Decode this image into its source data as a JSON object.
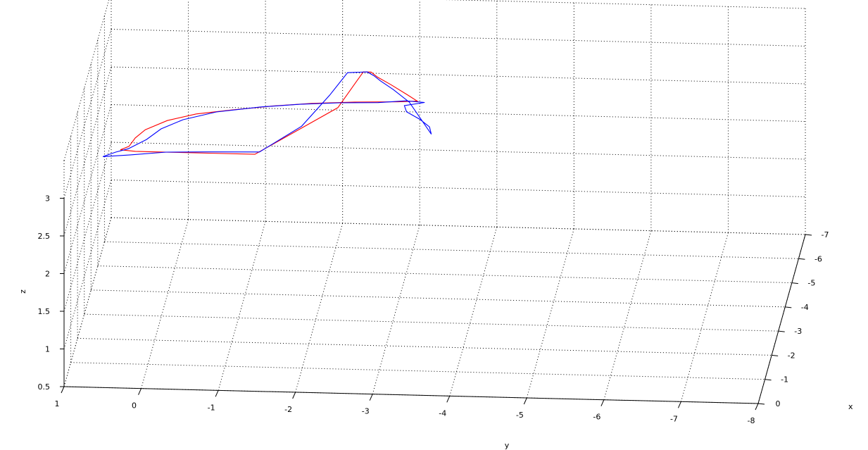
{
  "chart_data": {
    "type": "line",
    "title": "",
    "xlabel": "x",
    "ylabel": "y",
    "zlabel": "z",
    "grid": true,
    "xlim": [
      -7,
      0
    ],
    "ylim": [
      -8,
      1
    ],
    "zlim": [
      0.5,
      3
    ],
    "x_ticks": [
      0,
      -1,
      -2,
      -3,
      -4,
      -5,
      -6,
      -7
    ],
    "x_tick_labels": [
      "0",
      "-1",
      "-2",
      "-3",
      "-4",
      "-5",
      "-6",
      "-7"
    ],
    "y_ticks": [
      1,
      0,
      -1,
      -2,
      -3,
      -4,
      -5,
      -6,
      -7,
      -8
    ],
    "y_tick_labels": [
      "1",
      "0",
      "-1",
      "-2",
      "-3",
      "-4",
      "-5",
      "-6",
      "-7",
      "-8"
    ],
    "z_ticks": [
      0.5,
      1,
      1.5,
      2,
      2.5,
      3
    ],
    "z_tick_labels": [
      "0.5",
      "1",
      "1.5",
      "2",
      "2.5",
      "3"
    ],
    "series": [
      {
        "color": "#ff0000",
        "points": [
          [
            -2.05,
            0.45,
            3.0
          ],
          [
            -2.2,
            0.35,
            3.0
          ],
          [
            -2.55,
            0.3,
            3.0
          ],
          [
            -2.9,
            0.2,
            3.0
          ],
          [
            -3.3,
            -0.05,
            3.0
          ],
          [
            -3.6,
            -0.4,
            3.0
          ],
          [
            -3.8,
            -0.85,
            3.0
          ],
          [
            -4.0,
            -1.35,
            3.0
          ],
          [
            -4.15,
            -1.85,
            3.0
          ],
          [
            -4.25,
            -2.4,
            3.0
          ],
          [
            -4.3,
            -2.95,
            3.0
          ],
          [
            -4.35,
            -3.2,
            3.0
          ],
          [
            -4.6,
            -3.05,
            3.0
          ],
          [
            -5.0,
            -2.8,
            3.0
          ],
          [
            -5.3,
            -2.6,
            3.0
          ],
          [
            -5.5,
            -2.5,
            3.0
          ],
          [
            -5.5,
            -2.4,
            3.0
          ],
          [
            -4.0,
            -2.2,
            3.0
          ],
          [
            -2.0,
            -1.3,
            3.0
          ],
          [
            -2.0,
            -0.7,
            3.0
          ],
          [
            -2.0,
            -0.1,
            3.0
          ],
          [
            -2.0,
            0.25,
            3.0
          ],
          [
            -2.05,
            0.45,
            3.0
          ]
        ]
      },
      {
        "color": "#0000ff",
        "points": [
          [
            -1.75,
            0.65,
            3.0
          ],
          [
            -1.95,
            0.5,
            3.0
          ],
          [
            -2.1,
            0.35,
            3.0
          ],
          [
            -2.5,
            0.15,
            3.0
          ],
          [
            -2.95,
            0.0,
            3.0
          ],
          [
            -3.35,
            -0.25,
            3.0
          ],
          [
            -3.7,
            -0.65,
            3.0
          ],
          [
            -3.95,
            -1.2,
            3.0
          ],
          [
            -4.1,
            -1.7,
            3.0
          ],
          [
            -4.2,
            -2.2,
            3.0
          ],
          [
            -4.25,
            -2.7,
            3.0
          ],
          [
            -4.35,
            -3.05,
            3.0
          ],
          [
            -4.3,
            -3.3,
            3.0
          ],
          [
            -4.15,
            -3.05,
            3.0
          ],
          [
            -3.9,
            -3.1,
            3.0
          ],
          [
            -3.6,
            -3.3,
            3.0
          ],
          [
            -3.3,
            -3.45,
            3.0
          ],
          [
            -3.0,
            -3.5,
            3.0
          ],
          [
            -4.3,
            -3.1,
            3.0
          ],
          [
            -4.8,
            -2.85,
            3.0
          ],
          [
            -5.15,
            -2.65,
            3.0
          ],
          [
            -5.35,
            -2.55,
            3.0
          ],
          [
            -5.5,
            -2.45,
            3.0
          ],
          [
            -5.45,
            -2.2,
            3.0
          ],
          [
            -4.5,
            -2.05,
            3.0
          ],
          [
            -3.2,
            -1.8,
            3.0
          ],
          [
            -2.1,
            -1.35,
            3.0
          ],
          [
            -2.05,
            -0.7,
            3.0
          ],
          [
            -2.0,
            -0.15,
            3.0
          ],
          [
            -1.85,
            0.3,
            3.0
          ],
          [
            -1.75,
            0.65,
            3.0
          ]
        ]
      }
    ]
  }
}
